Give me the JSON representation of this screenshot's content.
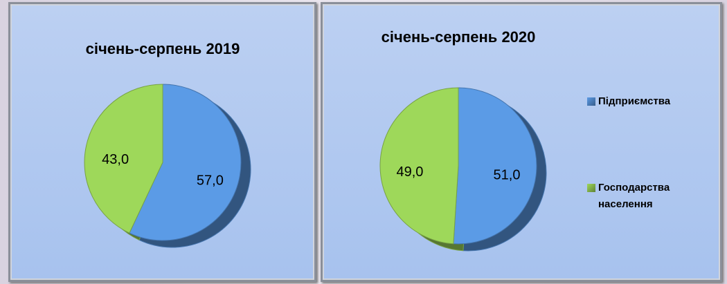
{
  "chart_data": [
    {
      "type": "pie",
      "title": "січень-серпень 2019",
      "categories": [
        "Підприємства",
        "Господарства населення"
      ],
      "values": [
        57,
        43
      ],
      "value_labels": [
        "57,0",
        "43,0"
      ],
      "colors": [
        "#5b9be6",
        "#9ed85a"
      ],
      "legend": false
    },
    {
      "type": "pie",
      "title": "січень-серпень 2020",
      "categories": [
        "Підприємства",
        "Господарства населення"
      ],
      "values": [
        51,
        49
      ],
      "value_labels": [
        "51,0",
        "49,0"
      ],
      "colors": [
        "#5b9be6",
        "#9ed85a"
      ],
      "legend": "right"
    }
  ]
}
